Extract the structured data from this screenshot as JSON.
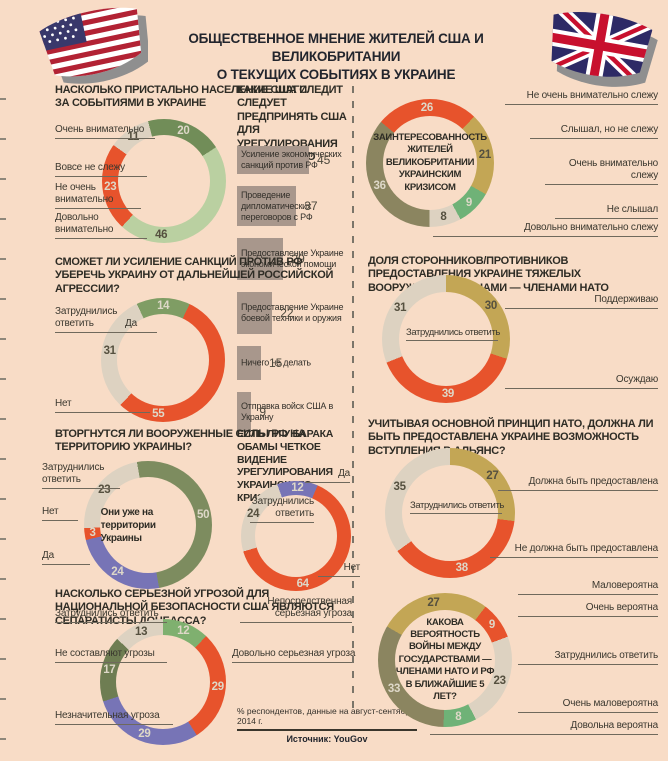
{
  "header": {
    "title_line1": "ОБЩЕСТВЕННОЕ МНЕНИЕ ЖИТЕЛЕЙ США И ВЕЛИКОБРИТАНИИ",
    "title_line2": "О ТЕКУЩИХ СОБЫТИЯХ В УКРАИНЕ",
    "icons": {
      "left": "us-flag",
      "right": "uk-flag"
    }
  },
  "footer": {
    "note": "% респондентов, данные на август-сентябрь 2014 г.",
    "source": "Источник: YouGov"
  },
  "colors": {
    "background": "#f8dcc6",
    "red": "#e7532c",
    "beige": "#ddd2c1",
    "purple": "#7774b6",
    "khaki": "#c3a655",
    "olive": "#8b8560",
    "line": "#6f695c"
  },
  "chart_data": [
    {
      "id": "us_attention",
      "type": "pie",
      "start_angle": -15,
      "title": "НАСКОЛЬКО ПРИСТАЛЬНО НАСЕЛЕНИЕ США СЛЕДИТ ЗА СОБЫТИЯМИ В УКРАИНЕ",
      "segments": [
        {
          "label": "Очень внимательно",
          "value": 20,
          "color": "#718d58"
        },
        {
          "label": "Довольно внимательно",
          "value": 46,
          "color": "#bad0a1",
          "num_angle": 183
        },
        {
          "label": "Не очень внимательно",
          "value": 23,
          "color": "#e7532c"
        },
        {
          "label": "Вовсе не слежу",
          "value": 11,
          "color": "#ddd2c1"
        }
      ]
    },
    {
      "id": "us_steps",
      "type": "bar",
      "bar_color": "#a8978c",
      "title": "КАКИЕ ШАГИ СЛЕДУЕТ ПРЕДПРИНЯТЬ США ДЛЯ УРЕГУЛИРОВАНИЯ УКРАИНСКОГО КРИЗИСА?",
      "bars": [
        {
          "label": "Усиление экономических санкций против РФ",
          "value": 45
        },
        {
          "label": "Проведение дипломатических переговоров с РФ",
          "value": 37
        },
        {
          "label": "Предоставление Украине экономической помощи",
          "value": 29
        },
        {
          "label": "Предоставление Украине боевой техники и оружия",
          "value": 22
        },
        {
          "label": "Ничего не делать",
          "value": 15
        },
        {
          "label": "Отправка войск США в Украину",
          "value": 9
        }
      ]
    },
    {
      "id": "us_sanctions",
      "type": "pie",
      "start_angle": -25,
      "title": "СМОЖЕТ ЛИ УСИЛЕНИЕ САНКЦИЙ ПРОТИВ РФ УБЕРЕЧЬ УКРАИНУ ОТ ДАЛЬНЕЙШЕЙ РОССИЙСКОЙ АГРЕССИИ?",
      "segments": [
        {
          "label": "Да",
          "value": 14,
          "color": "#7f9d64"
        },
        {
          "label": "Нет",
          "value": 55,
          "color": "#e7532c",
          "num_angle": 185
        },
        {
          "label": "Затруднились ответить",
          "value": 31,
          "color": "#ddd2c1"
        }
      ]
    },
    {
      "id": "us_invasion",
      "type": "pie",
      "start_angle": -10,
      "title": "ВТОРГНУТСЯ ЛИ ВООРУЖЕННЫЕ СИЛЫ РФ НА ТЕРРИТОРИЮ УКРАИНЫ?",
      "center_label": "Они уже на территории Украины",
      "segments": [
        {
          "label": "Они уже на территории Украины",
          "value": 50,
          "color": "#7d8c5f"
        },
        {
          "label": "Да",
          "value": 24,
          "color": "#7774b6"
        },
        {
          "label": "Нет",
          "value": 3,
          "color": "#e7532c"
        },
        {
          "label": "Затруднились ответить",
          "value": 23,
          "color": "#ddd2c1"
        }
      ]
    },
    {
      "id": "us_obama",
      "type": "pie",
      "start_angle": -20,
      "title": "ЕСТЬ ЛИ У БАРАКА ОБАМЫ ЧЕТКОЕ ВИДЕНИЕ УРЕГУЛИРОВАНИЯ УКРАИНСКОГО КРИЗИСА?",
      "segments": [
        {
          "label": "Да",
          "value": 12,
          "color": "#7774b6"
        },
        {
          "label": "Нет",
          "value": 64,
          "color": "#e7532c",
          "num_angle": 172
        },
        {
          "label": "Затруднились ответить",
          "value": 24,
          "color": "#ddd2c1"
        }
      ]
    },
    {
      "id": "us_separatists",
      "type": "pie",
      "start_angle": 0,
      "title": "НАСКОЛЬКО СЕРЬЕЗНОЙ УГРОЗОЙ ДЛЯ НАЦИОНАЛЬНОЙ БЕЗОПАСНОСТИ США ЯВЛЯЮТСЯ СЕПАРАТИСТЫ ДОНБАССА?",
      "segments": [
        {
          "label": "Непосредственная серьезная угроза",
          "value": 12,
          "color": "#7fb06f"
        },
        {
          "label": "Довольно серьезная угроза",
          "value": 29,
          "color": "#e7532c"
        },
        {
          "label": "Незначительная угроза",
          "value": 29,
          "color": "#7774b6"
        },
        {
          "label": "Не составляют угрозы",
          "value": 17,
          "color": "#6e7d52"
        },
        {
          "label": "Затруднились ответить",
          "value": 13,
          "color": "#ddd2c1"
        }
      ]
    },
    {
      "id": "uk_interest",
      "type": "pie",
      "start_angle": -50,
      "center_label": "ЗАИНТЕРЕСОВАННОСТЬ ЖИТЕЛЕЙ ВЕЛИКОБРИТАНИИ УКРАИНСКИМ КРИЗИСОМ",
      "segments": [
        {
          "label": "Не очень внимательно слежу",
          "value": 26,
          "color": "#e7532c"
        },
        {
          "label": "Слышал, но не слежу",
          "value": 21,
          "color": "#c3a655"
        },
        {
          "label": "Очень внимательно слежу",
          "value": 9,
          "color": "#6fb277"
        },
        {
          "label": "Не слышал",
          "value": 8,
          "color": "#ddd2c1"
        },
        {
          "label": "Довольно внимательно слежу",
          "value": 36,
          "color": "#8b8560"
        }
      ]
    },
    {
      "id": "uk_weapons",
      "type": "pie",
      "start_angle": 0,
      "title": "ДОЛЯ СТОРОННИКОВ/ПРОТИВНИКОВ ПРЕДОСТАВЛЕНИЯ УКРАИНЕ ТЯЖЕЛЫХ ВООРУЖЕНИЙ СТРАНАМИ — ЧЛЕНАМИ НАТО",
      "segments": [
        {
          "label": "Поддерживаю",
          "value": 30,
          "color": "#c3a655"
        },
        {
          "label": "Осуждаю",
          "value": 39,
          "color": "#e7532c",
          "num_angle": 178
        },
        {
          "label": "Затруднились ответить",
          "value": 31,
          "color": "#ddd2c1"
        }
      ]
    },
    {
      "id": "uk_nato",
      "type": "pie",
      "start_angle": 0,
      "title": "УЧИТЫВАЯ ОСНОВНОЙ ПРИНЦИП НАТО, ДОЛЖНА ЛИ БЫТЬ ПРЕДОСТАВЛЕНА УКРАИНЕ ВОЗМОЖНОСТЬ ВСТУПЛЕНИЯ В АЛЬЯНС?",
      "segments": [
        {
          "label": "Должна быть предоставлена",
          "value": 27,
          "color": "#c3a655"
        },
        {
          "label": "Не должна быть предоставлена",
          "value": 38,
          "color": "#e7532c",
          "num_angle": 168
        },
        {
          "label": "Затруднились ответить",
          "value": 35,
          "color": "#ddd2c1"
        }
      ]
    },
    {
      "id": "uk_war",
      "type": "pie",
      "start_angle": -60,
      "center_label": "КАКОВА ВЕРОЯТНОСТЬ ВОЙНЫ МЕЖДУ ГОСУДАРСТВАМИ — ЧЛЕНАМИ НАТО И РФ В БЛИЖАЙШИЕ 5 ЛЕТ?",
      "segments": [
        {
          "label": "Маловероятна",
          "value": 27,
          "color": "#c3a655"
        },
        {
          "label": "Очень вероятна",
          "value": 9,
          "color": "#e7532c"
        },
        {
          "label": "Затруднились ответить",
          "value": 23,
          "color": "#ddd2c1"
        },
        {
          "label": "Довольна вероятна",
          "value": 8,
          "color": "#6fb277"
        },
        {
          "label": "Очень маловероятна",
          "value": 33,
          "color": "#8b8560"
        }
      ]
    }
  ]
}
